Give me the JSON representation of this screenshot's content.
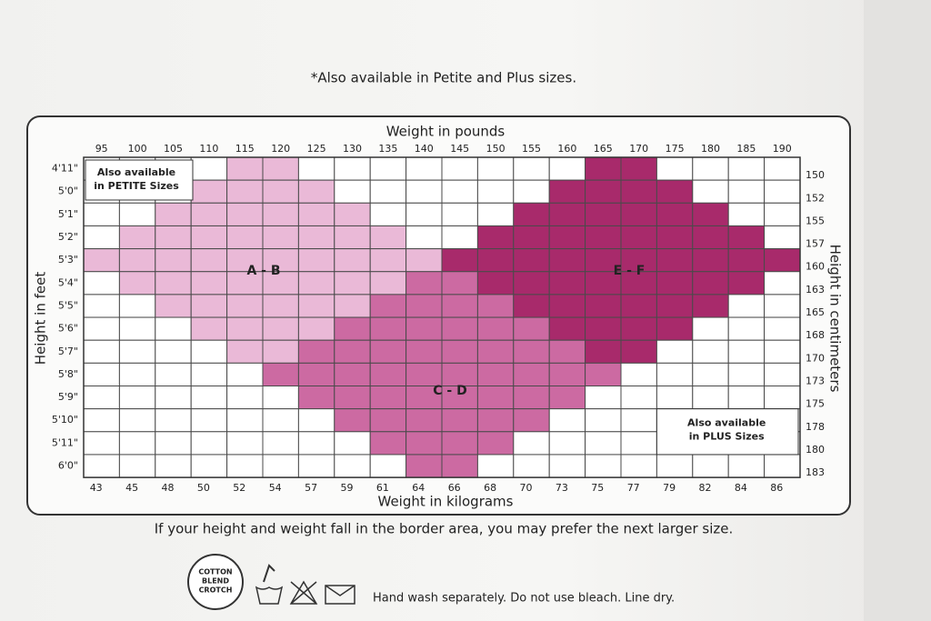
{
  "notice": "*Also available in Petite and Plus sizes.",
  "chart": {
    "top_axis_title": "Weight in pounds",
    "bottom_axis_title": "Weight in kilograms",
    "left_axis_title": "Height in feet",
    "right_axis_title": "Height in centimeters",
    "pounds": [
      95,
      100,
      105,
      110,
      115,
      120,
      125,
      130,
      135,
      140,
      145,
      150,
      155,
      160,
      165,
      170,
      175,
      180,
      185,
      190
    ],
    "kilograms": [
      43,
      45,
      48,
      50,
      52,
      54,
      57,
      59,
      61,
      64,
      66,
      68,
      70,
      73,
      75,
      77,
      79,
      82,
      84,
      86
    ],
    "feet": [
      "4'11\"",
      "5'0\"",
      "5'1\"",
      "5'2\"",
      "5'3\"",
      "5'4\"",
      "5'5\"",
      "5'6\"",
      "5'7\"",
      "5'8\"",
      "5'9\"",
      "5'10\"",
      "5'11\"",
      "6'0\""
    ],
    "centimeters": [
      150,
      152,
      155,
      157,
      160,
      163,
      165,
      168,
      170,
      173,
      175,
      178,
      180,
      183
    ],
    "regions": [
      "A - B",
      "C - D",
      "E - F"
    ],
    "petite_note": [
      "Also available",
      "in PETITE Sizes"
    ],
    "plus_note": [
      "Also available",
      "in PLUS Sizes"
    ]
  },
  "advice": "If your height and weight fall in the border area, you may prefer the next larger size.",
  "care": {
    "badge": [
      "COTTON",
      "BLEND",
      "CROTCH"
    ],
    "instructions": "Hand wash separately. Do not use bleach. Line dry."
  }
}
